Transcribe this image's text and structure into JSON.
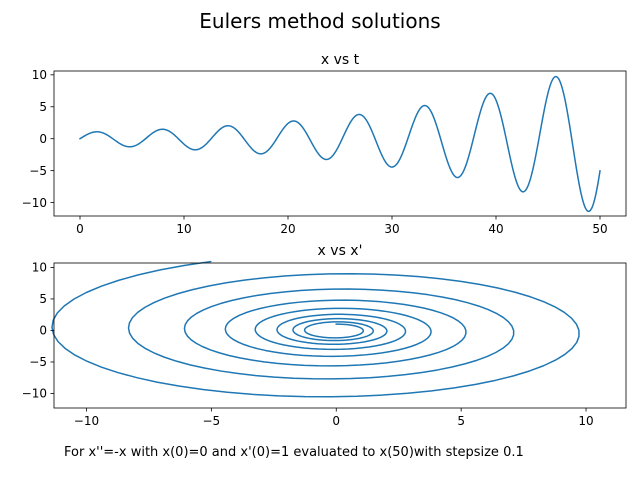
{
  "suptitle": "Eulers method solutions",
  "caption": "For x''=-x with x(0)=0 and x'(0)=1  evaluated to x(50)with stepsize 0.1",
  "colors": {
    "series": "#1f77b4",
    "axes": "#000000",
    "background": "#ffffff"
  },
  "chart_data": [
    {
      "type": "line",
      "title": "x vs t",
      "xlabel": "",
      "ylabel": "",
      "xlim": [
        -2.5,
        52.5
      ],
      "ylim": [
        -12.1,
        10.6
      ],
      "xticks": [
        0,
        10,
        20,
        30,
        40,
        50
      ],
      "xtick_labels": [
        "0",
        "10",
        "20",
        "30",
        "40",
        "50"
      ],
      "yticks": [
        10,
        5,
        0,
        -5,
        -10
      ],
      "ytick_labels": [
        "10",
        "5",
        "0",
        "−5",
        "−10"
      ],
      "grid": false,
      "legend": "none",
      "series": [
        {
          "generator": "euler",
          "equation": "x''=-x",
          "x0": 0,
          "v0": 1,
          "t_end": 50,
          "step": 0.1,
          "x_var": "t",
          "y_var": "x"
        }
      ]
    },
    {
      "type": "line",
      "title": "x vs x'",
      "xlabel": "",
      "ylabel": "",
      "xlim": [
        -11.3,
        11.6
      ],
      "ylim": [
        -12.3,
        10.7
      ],
      "xticks": [
        -10,
        -5,
        0,
        5,
        10
      ],
      "xtick_labels": [
        "−10",
        "−5",
        "0",
        "5",
        "10"
      ],
      "yticks": [
        10,
        5,
        0,
        -5,
        -10
      ],
      "ytick_labels": [
        "10",
        "5",
        "0",
        "−5",
        "−10"
      ],
      "grid": false,
      "legend": "none",
      "series": [
        {
          "generator": "euler",
          "equation": "x''=-x",
          "x0": 0,
          "v0": 1,
          "t_end": 50,
          "step": 0.1,
          "x_var": "x",
          "y_var": "v"
        }
      ]
    }
  ]
}
